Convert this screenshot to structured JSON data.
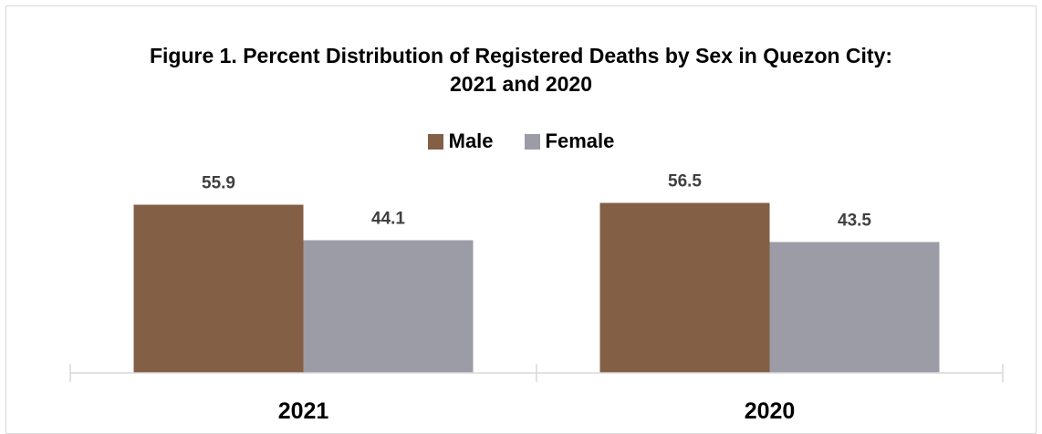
{
  "colors": {
    "male": "#825F45",
    "female": "#9C9CA7",
    "axis": "#d9d9d9",
    "data_label": "#404040"
  },
  "chart_data": {
    "type": "bar",
    "title": "Figure 1. Percent Distribution of Registered Deaths by Sex in Quezon City:",
    "subtitle": "2021 and 2020",
    "categories": [
      "2021",
      "2020"
    ],
    "series": [
      {
        "name": "Male",
        "values": [
          55.9,
          56.5
        ],
        "labels": [
          "55.9",
          "56.5"
        ]
      },
      {
        "name": "Female",
        "values": [
          44.1,
          43.5
        ],
        "labels": [
          "44.1",
          "43.5"
        ]
      }
    ],
    "xlabel": "",
    "ylabel": "",
    "ylim": [
      0,
      100
    ],
    "grid": false,
    "legend_position": "top"
  }
}
